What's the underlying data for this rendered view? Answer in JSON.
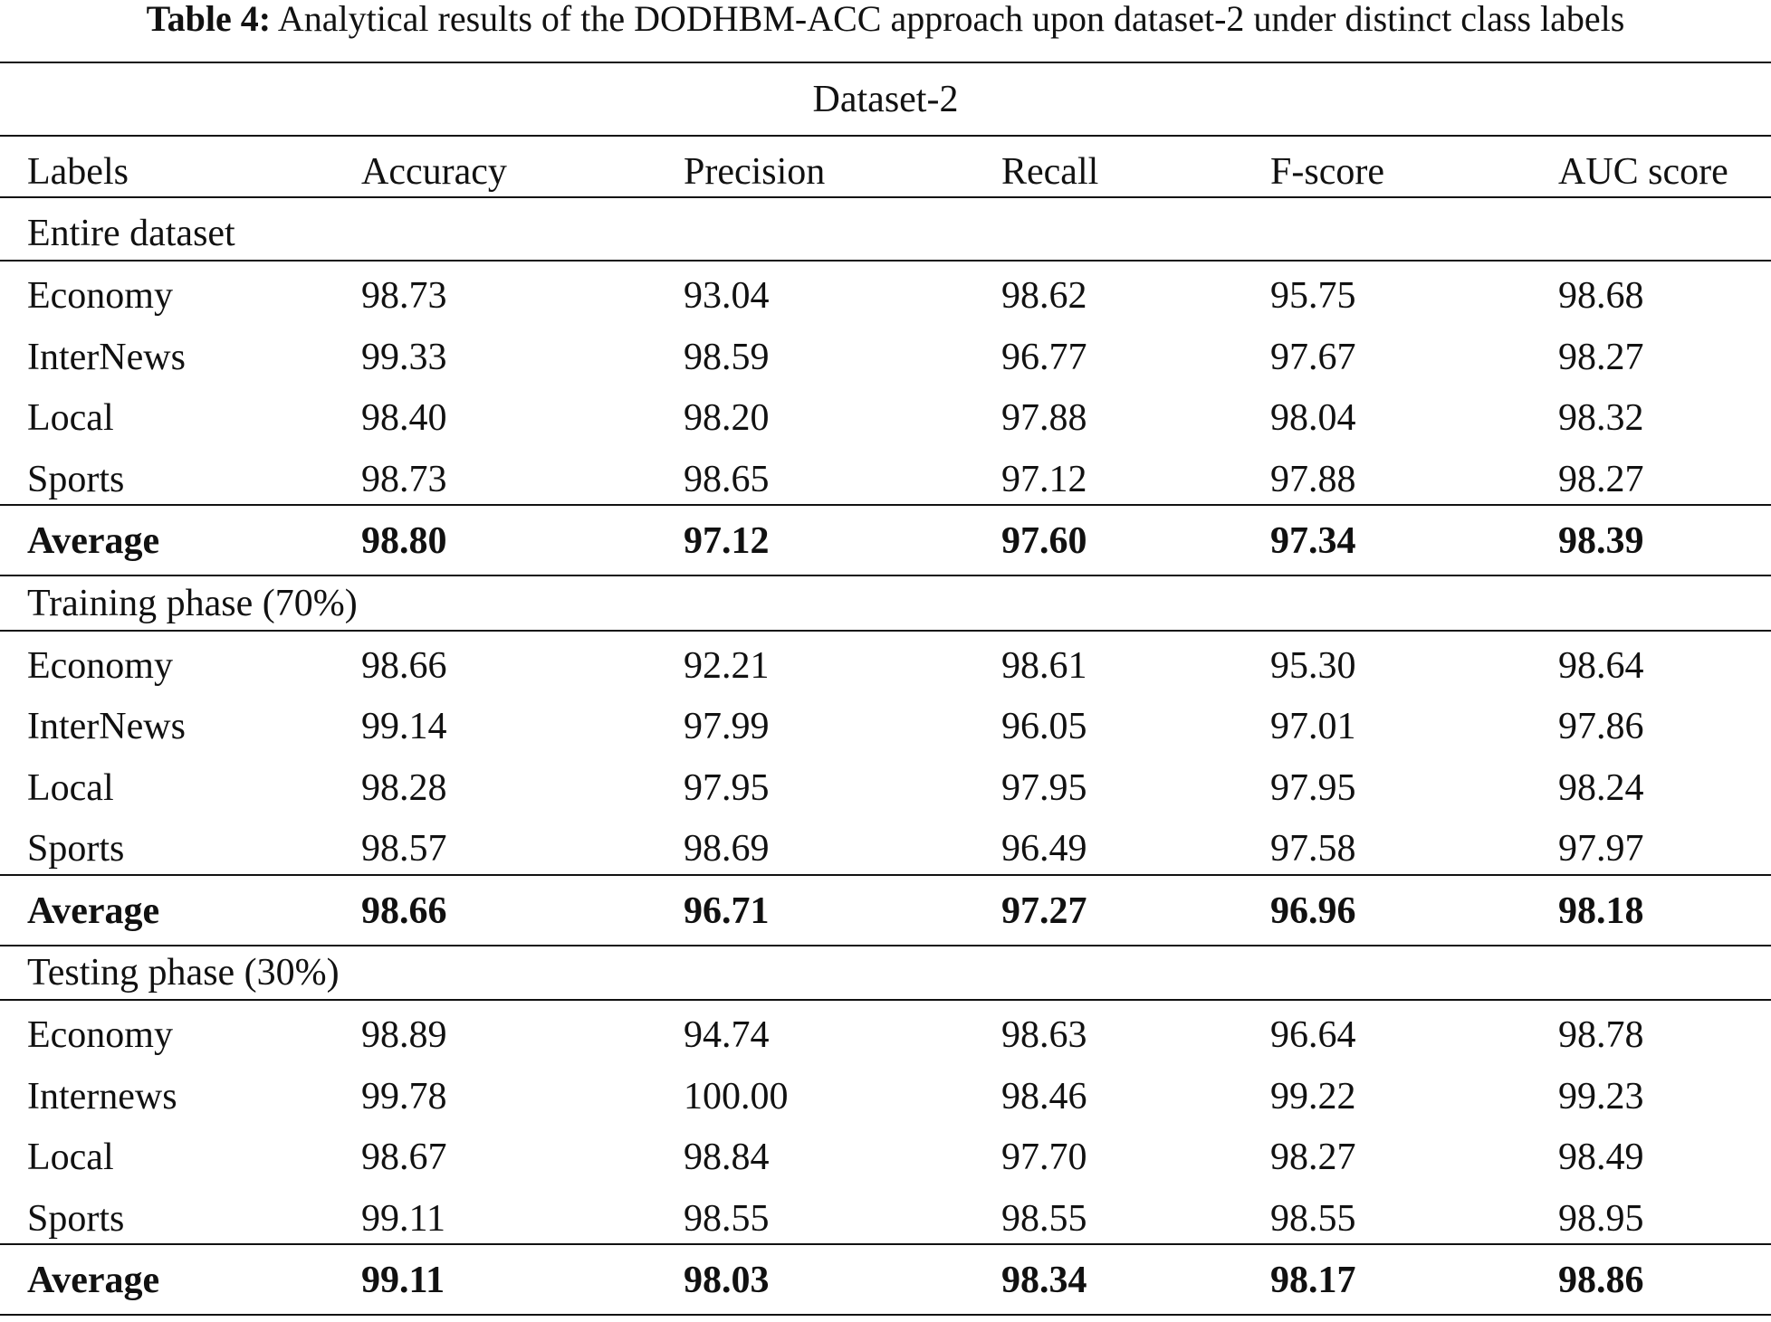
{
  "caption": {
    "label": "Table 4:",
    "text": "Analytical results of the DODHBM-ACC approach upon dataset-2 under distinct class labels"
  },
  "table": {
    "group_header": "Dataset-2",
    "columns": [
      "Labels",
      "Accuracy",
      "Precision",
      "Recall",
      "F-score",
      "AUC score"
    ],
    "sections": [
      {
        "title": "Entire dataset",
        "rows": [
          [
            "Economy",
            "98.73",
            "93.04",
            "98.62",
            "95.75",
            "98.68"
          ],
          [
            "InterNews",
            "99.33",
            "98.59",
            "96.77",
            "97.67",
            "98.27"
          ],
          [
            "Local",
            "98.40",
            "98.20",
            "97.88",
            "98.04",
            "98.32"
          ],
          [
            "Sports",
            "98.73",
            "98.65",
            "97.12",
            "97.88",
            "98.27"
          ]
        ],
        "average": [
          "Average",
          "98.80",
          "97.12",
          "97.60",
          "97.34",
          "98.39"
        ]
      },
      {
        "title": "Training phase (70%)",
        "rows": [
          [
            "Economy",
            "98.66",
            "92.21",
            "98.61",
            "95.30",
            "98.64"
          ],
          [
            "InterNews",
            "99.14",
            "97.99",
            "96.05",
            "97.01",
            "97.86"
          ],
          [
            "Local",
            "98.28",
            "97.95",
            "97.95",
            "97.95",
            "98.24"
          ],
          [
            "Sports",
            "98.57",
            "98.69",
            "96.49",
            "97.58",
            "97.97"
          ]
        ],
        "average": [
          "Average",
          "98.66",
          "96.71",
          "97.27",
          "96.96",
          "98.18"
        ]
      },
      {
        "title": "Testing phase (30%)",
        "rows": [
          [
            "Economy",
            "98.89",
            "94.74",
            "98.63",
            "96.64",
            "98.78"
          ],
          [
            "Internews",
            "99.78",
            "100.00",
            "98.46",
            "99.22",
            "99.23"
          ],
          [
            "Local",
            "98.67",
            "98.84",
            "97.70",
            "98.27",
            "98.49"
          ],
          [
            "Sports",
            "99.11",
            "98.55",
            "98.55",
            "98.55",
            "98.95"
          ]
        ],
        "average": [
          "Average",
          "99.11",
          "98.03",
          "98.34",
          "98.17",
          "98.86"
        ]
      }
    ]
  }
}
